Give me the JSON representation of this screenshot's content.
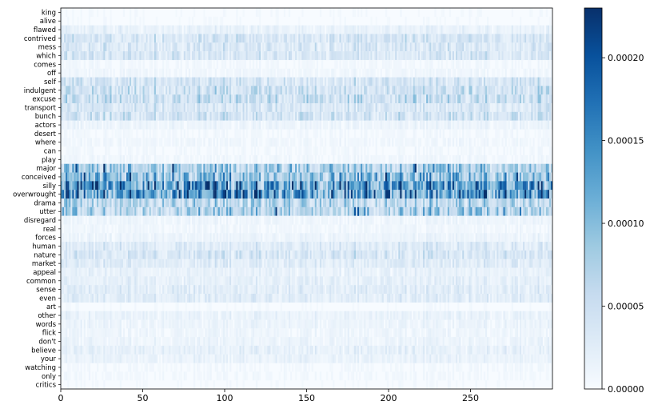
{
  "chart_data": {
    "type": "heatmap",
    "title": "",
    "xlabel": "",
    "ylabel": "",
    "x_range": [
      0,
      300
    ],
    "x_ticks": [
      0,
      50,
      100,
      150,
      200,
      250
    ],
    "y_labels": [
      "king",
      "alive",
      "flawed",
      "contrived",
      "mess",
      "which",
      "comes",
      "off",
      "self",
      "indulgent",
      "excuse",
      "transport",
      "bunch",
      "actors",
      "desert",
      "where",
      "can",
      "play",
      "major",
      "conceived",
      "silly",
      "overwrought",
      "drama",
      "utter",
      "disregard",
      "real",
      "forces",
      "human",
      "nature",
      "market",
      "appeal",
      "common",
      "sense",
      "even",
      "art",
      "other",
      "words",
      "flick",
      "don't",
      "believe",
      "your",
      "watching",
      "only",
      "critics"
    ],
    "row_intensity": [
      0.02,
      0.02,
      0.08,
      0.18,
      0.16,
      0.17,
      0.03,
      0.04,
      0.18,
      0.22,
      0.24,
      0.17,
      0.2,
      0.06,
      0.03,
      0.04,
      0.03,
      0.04,
      0.35,
      0.45,
      0.6,
      0.62,
      0.3,
      0.33,
      0.05,
      0.04,
      0.06,
      0.14,
      0.17,
      0.13,
      0.08,
      0.1,
      0.12,
      0.12,
      0.02,
      0.07,
      0.06,
      0.05,
      0.06,
      0.09,
      0.07,
      0.03,
      0.03,
      0.02
    ],
    "colormap": "Blues",
    "colorbar": {
      "min": 0.0,
      "max": 0.00023,
      "ticks": [
        0.0,
        5e-05,
        0.0001,
        0.00015,
        0.0002
      ],
      "tick_labels": [
        "0.00000",
        "0.00005",
        "0.00010",
        "0.00015",
        "0.00020"
      ]
    }
  }
}
